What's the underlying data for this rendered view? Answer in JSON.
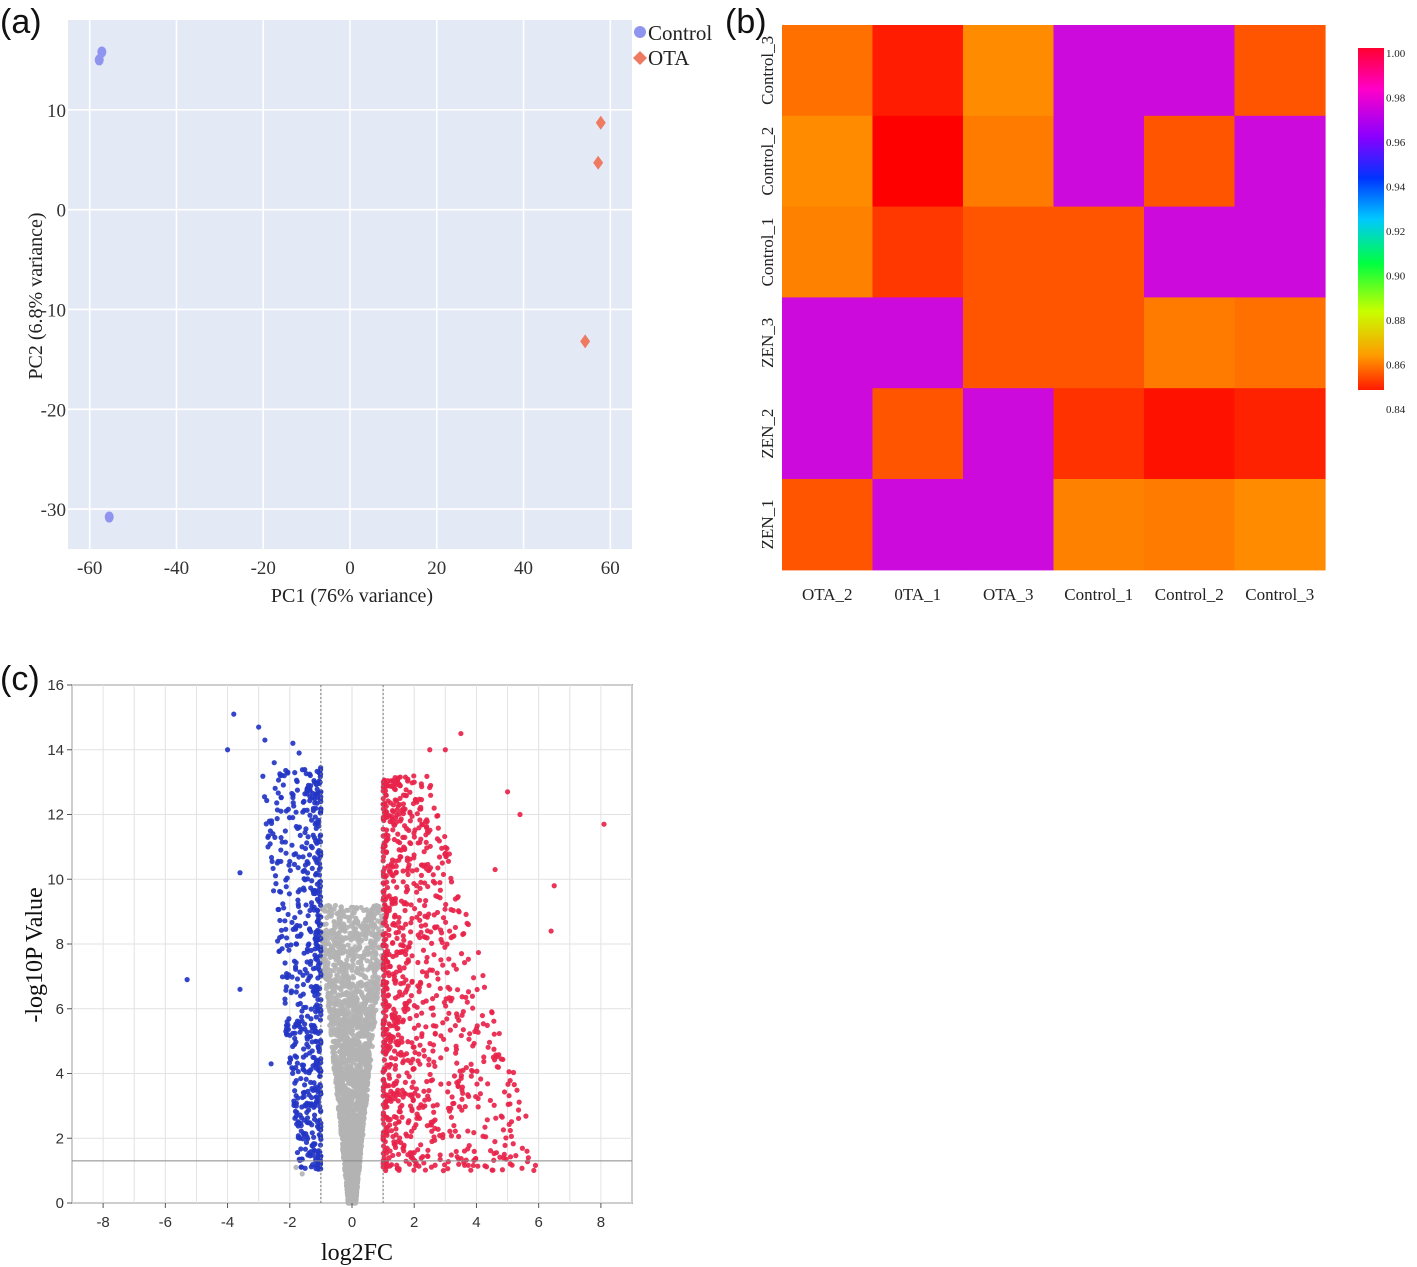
{
  "panel_labels": {
    "a": "(a)",
    "b": "(b)",
    "c": "(c)"
  },
  "colors": {
    "control": "#8f95ee",
    "ota": "#ee7a62",
    "pca_bg": "#e4e9f6",
    "up": "#e8234a",
    "down": "#2335c4",
    "ns": "#b3b3b3"
  },
  "chart_data": [
    {
      "type": "scatter",
      "title": "",
      "xlabel": "PC1 (76% variance)",
      "ylabel": "PC2 (6.8% variance)",
      "xlim": [
        -65,
        65
      ],
      "ylim": [
        -34,
        19
      ],
      "xticks": [
        -60,
        -40,
        -20,
        0,
        20,
        40,
        60
      ],
      "yticks": [
        10,
        0,
        -10,
        -20,
        -30
      ],
      "x_tick_labels": [
        "-60",
        "-40",
        "-20",
        "0",
        "20",
        "40",
        "60"
      ],
      "y_tick_labels": [
        "10",
        "0",
        "-10",
        "-20",
        "-30"
      ],
      "grid": true,
      "legend_position": "top-right",
      "series": [
        {
          "name": "Control",
          "marker": "circle",
          "points": [
            [
              -57.2,
              15.8
            ],
            [
              -57.8,
              15.0
            ],
            [
              -55.5,
              -30.8
            ]
          ]
        },
        {
          "name": "OTA",
          "marker": "diamond",
          "points": [
            [
              57.8,
              8.7
            ],
            [
              57.2,
              4.7
            ],
            [
              54.2,
              -13.2
            ]
          ]
        }
      ]
    },
    {
      "type": "heatmap",
      "title": "",
      "x_labels": [
        "OTA_2",
        "0TA_1",
        "OTA_3",
        "Control_1",
        "Control_2",
        "Control_3"
      ],
      "y_labels": [
        "Control_3",
        "Control_2",
        "Control_1",
        "ZEN_3",
        "ZEN_2",
        "ZEN_1"
      ],
      "values": [
        [
          0.84,
          0.825,
          0.845,
          0.965,
          0.965,
          0.835
        ],
        [
          0.845,
          0.82,
          0.842,
          0.965,
          0.835,
          0.965
        ],
        [
          0.843,
          0.83,
          0.835,
          0.835,
          0.965,
          0.965
        ],
        [
          0.965,
          0.965,
          0.835,
          0.835,
          0.842,
          0.84
        ],
        [
          0.965,
          0.835,
          0.965,
          0.829,
          0.823,
          0.826
        ],
        [
          0.835,
          0.965,
          0.965,
          0.843,
          0.842,
          0.845
        ]
      ],
      "colorbar": {
        "min": 0.82,
        "max": 1.0,
        "tick_labels": [
          "1.00",
          "0.98",
          "0.96",
          "0.94",
          "0.92",
          "0.90",
          "0.88",
          "0.86",
          "0.84"
        ]
      },
      "legend_position": "right"
    },
    {
      "type": "scatter",
      "title": "",
      "xlabel": "log2FC",
      "ylabel": "-log10P Value",
      "xlim": [
        -9,
        9
      ],
      "ylim": [
        0,
        16
      ],
      "xticks": [
        -8,
        -6,
        -4,
        -2,
        0,
        2,
        4,
        6,
        8
      ],
      "yticks": [
        0,
        2,
        4,
        6,
        8,
        10,
        12,
        14,
        16
      ],
      "x_tick_labels": [
        "-8",
        "-6",
        "-4",
        "-2",
        "0",
        "2",
        "4",
        "6",
        "8"
      ],
      "y_tick_labels": [
        "0",
        "2",
        "4",
        "6",
        "8",
        "10",
        "12",
        "14",
        "16"
      ],
      "threshold_lines": {
        "x": [
          -1,
          1
        ],
        "y": 1.3
      },
      "grid": true,
      "series": [
        {
          "name": "",
          "color": "down",
          "points": [
            [
              -4.0,
              14.0
            ],
            [
              -3.8,
              15.1
            ],
            [
              -3.0,
              14.7
            ],
            [
              -2.8,
              14.3
            ],
            [
              -2.5,
              13.6
            ],
            [
              -2.3,
              13.2
            ],
            [
              -5.3,
              6.9
            ],
            [
              -3.6,
              6.6
            ],
            [
              -3.6,
              10.2
            ],
            [
              -2.7,
              11.0
            ],
            [
              -2.4,
              10.5
            ],
            [
              -2.6,
              4.3
            ],
            [
              -1.9,
              14.2
            ],
            [
              -1.7,
              13.9
            ]
          ]
        },
        {
          "name": "",
          "color": "up",
          "points": [
            [
              3.5,
              14.5
            ],
            [
              2.5,
              14.0
            ],
            [
              3.0,
              14.0
            ],
            [
              5.4,
              12.0
            ],
            [
              6.5,
              9.8
            ],
            [
              6.4,
              8.4
            ],
            [
              8.1,
              11.7
            ],
            [
              5.0,
              12.7
            ],
            [
              4.6,
              10.3
            ],
            [
              2.0,
              13.0
            ]
          ]
        },
        {
          "name": "",
          "color": "ns",
          "points": [
            [
              -1.8,
              1.1
            ],
            [
              -1.6,
              0.9
            ],
            [
              0.0,
              0.1
            ]
          ]
        }
      ],
      "point_counts": {
        "down": 640,
        "up": 1050,
        "ns": 2600
      }
    }
  ]
}
